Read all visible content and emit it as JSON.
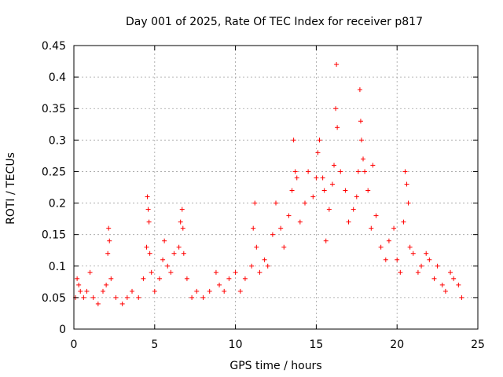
{
  "chart_data": {
    "type": "scatter",
    "title": "Day 001 of 2025, Rate Of TEC Index for receiver p817",
    "xlabel": "GPS time / hours",
    "ylabel": "ROTI / TECUs",
    "xlim": [
      0,
      25
    ],
    "ylim": [
      0,
      0.45
    ],
    "x_ticks": [
      0,
      5,
      10,
      15,
      20,
      25
    ],
    "x_tick_labels": [
      "0",
      "5",
      "10",
      "15",
      "20",
      "25"
    ],
    "y_ticks": [
      0,
      0.05,
      0.1,
      0.15,
      0.2,
      0.25,
      0.3,
      0.35,
      0.4,
      0.45
    ],
    "y_tick_labels": [
      "0",
      "0.05",
      "0.1",
      "0.15",
      "0.2",
      "0.25",
      "0.3",
      "0.35",
      "0.4",
      "0.45"
    ],
    "grid": true,
    "marker": "plus",
    "color": "#ff0000",
    "series": [
      {
        "name": "ROTI",
        "x": [
          0.1,
          0.2,
          0.3,
          0.4,
          0.6,
          0.8,
          1.0,
          1.2,
          1.5,
          1.8,
          2.0,
          2.1,
          2.15,
          2.2,
          2.3,
          2.6,
          3.0,
          3.3,
          3.6,
          4.0,
          4.3,
          4.5,
          4.55,
          4.6,
          4.65,
          4.7,
          4.8,
          5.0,
          5.3,
          5.5,
          5.6,
          5.8,
          6.0,
          6.2,
          6.5,
          6.6,
          6.7,
          6.75,
          6.8,
          7.0,
          7.3,
          7.6,
          8.0,
          8.4,
          8.8,
          9.0,
          9.3,
          9.6,
          10.0,
          10.3,
          10.6,
          11.0,
          11.1,
          11.2,
          11.3,
          11.5,
          11.8,
          12.0,
          12.3,
          12.5,
          12.8,
          13.0,
          13.3,
          13.5,
          13.6,
          13.7,
          13.8,
          14.0,
          14.3,
          14.5,
          14.8,
          15.0,
          15.1,
          15.2,
          15.4,
          15.5,
          15.6,
          15.8,
          16.0,
          16.1,
          16.2,
          16.25,
          16.3,
          16.5,
          16.8,
          17.0,
          17.3,
          17.5,
          17.6,
          17.7,
          17.75,
          17.8,
          17.9,
          18.0,
          18.2,
          18.4,
          18.5,
          18.7,
          19.0,
          19.3,
          19.5,
          19.8,
          20.0,
          20.2,
          20.4,
          20.5,
          20.6,
          20.7,
          20.8,
          21.0,
          21.3,
          21.5,
          21.8,
          22.0,
          22.3,
          22.5,
          22.8,
          23.0,
          23.3,
          23.5,
          23.8,
          24.0
        ],
        "y": [
          0.05,
          0.08,
          0.07,
          0.06,
          0.05,
          0.06,
          0.09,
          0.05,
          0.04,
          0.06,
          0.07,
          0.12,
          0.16,
          0.14,
          0.08,
          0.05,
          0.04,
          0.05,
          0.06,
          0.05,
          0.08,
          0.13,
          0.21,
          0.19,
          0.17,
          0.12,
          0.09,
          0.06,
          0.08,
          0.11,
          0.14,
          0.1,
          0.09,
          0.12,
          0.13,
          0.17,
          0.19,
          0.16,
          0.12,
          0.08,
          0.05,
          0.06,
          0.05,
          0.06,
          0.09,
          0.07,
          0.06,
          0.08,
          0.09,
          0.06,
          0.08,
          0.1,
          0.16,
          0.2,
          0.13,
          0.09,
          0.11,
          0.1,
          0.15,
          0.2,
          0.16,
          0.13,
          0.18,
          0.22,
          0.3,
          0.25,
          0.24,
          0.17,
          0.2,
          0.25,
          0.21,
          0.24,
          0.28,
          0.3,
          0.24,
          0.22,
          0.14,
          0.19,
          0.23,
          0.26,
          0.35,
          0.42,
          0.32,
          0.25,
          0.22,
          0.17,
          0.19,
          0.21,
          0.25,
          0.38,
          0.33,
          0.3,
          0.27,
          0.25,
          0.22,
          0.16,
          0.26,
          0.18,
          0.13,
          0.11,
          0.14,
          0.16,
          0.11,
          0.09,
          0.17,
          0.25,
          0.23,
          0.2,
          0.13,
          0.12,
          0.09,
          0.1,
          0.12,
          0.11,
          0.08,
          0.1,
          0.07,
          0.06,
          0.09,
          0.08,
          0.07,
          0.05
        ]
      }
    ]
  }
}
